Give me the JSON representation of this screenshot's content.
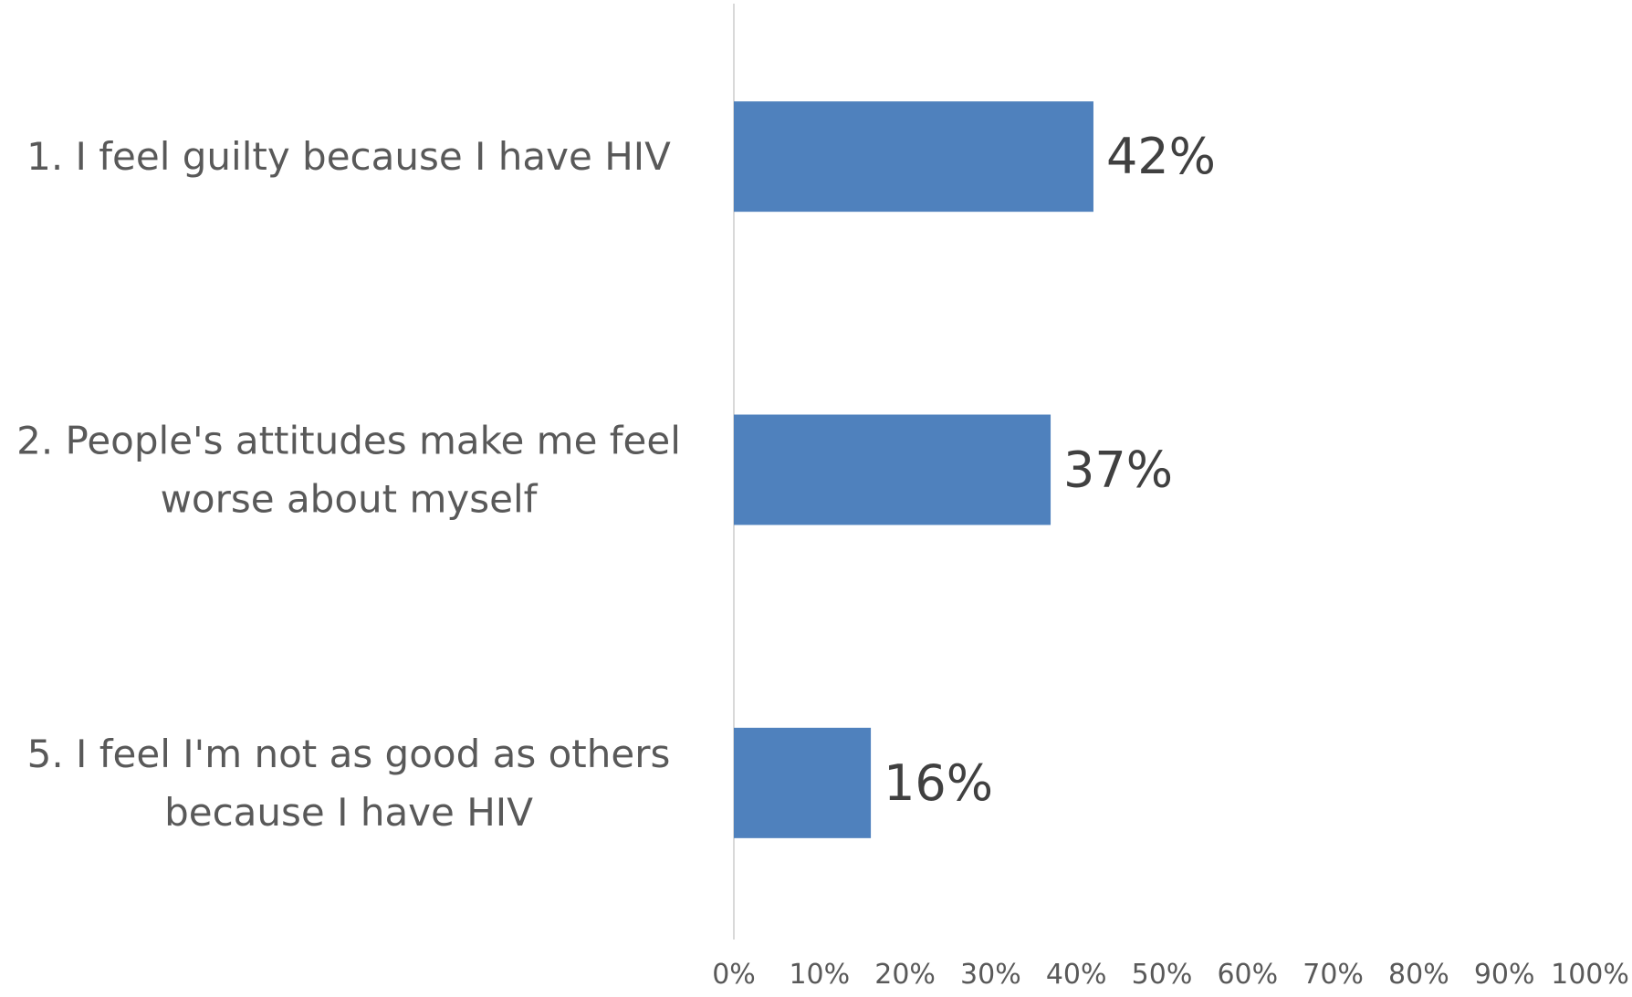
{
  "chart_data": {
    "type": "bar",
    "orientation": "horizontal",
    "categories": [
      "1. I feel guilty because I have HIV",
      "2. People's attitudes make me feel worse about myself",
      "5. I feel I'm not as good as others because I have HIV"
    ],
    "category_lines": [
      [
        "1. I feel guilty because I have HIV"
      ],
      [
        "2. People's attitudes make me feel",
        "worse about myself"
      ],
      [
        "5. I feel I'm not as good as others",
        "because I have HIV"
      ]
    ],
    "values": [
      42,
      37,
      16
    ],
    "data_labels": [
      "42%",
      "37%",
      "16%"
    ],
    "xlim": [
      0,
      100
    ],
    "x_ticks": [
      0,
      10,
      20,
      30,
      40,
      50,
      60,
      70,
      80,
      90,
      100
    ],
    "x_tick_labels": [
      "0%",
      "10%",
      "20%",
      "30%",
      "40%",
      "50%",
      "60%",
      "70%",
      "80%",
      "90%",
      "100%"
    ],
    "bar_color": "#4f81bd",
    "axis_color": "#d9d9d9",
    "grid": false,
    "legend": "none"
  }
}
